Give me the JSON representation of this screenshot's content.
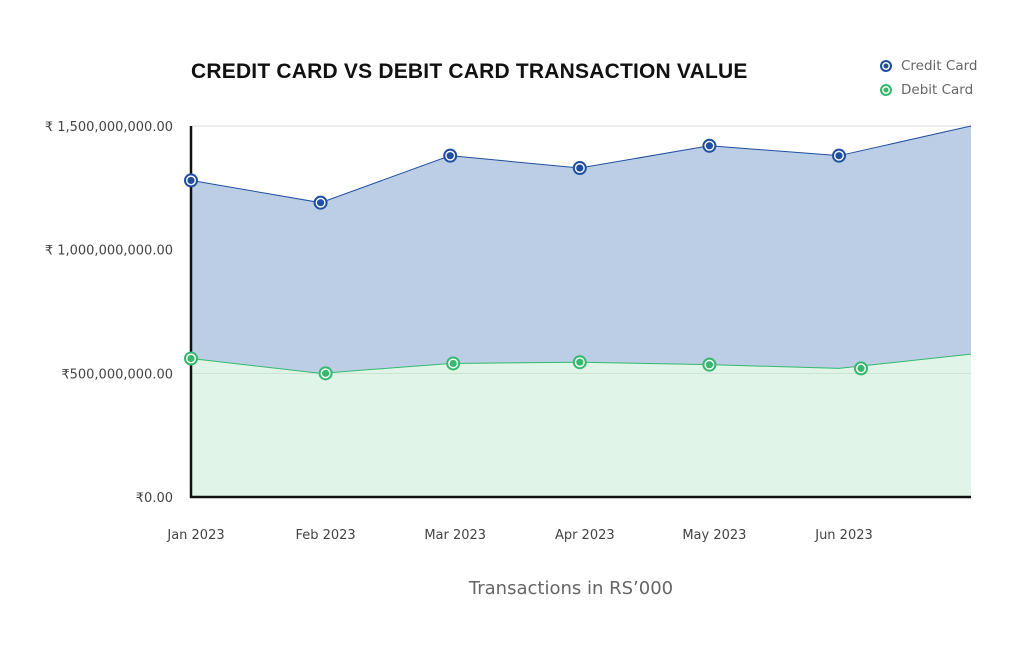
{
  "chart_data": {
    "type": "area",
    "title": "CREDIT CARD VS DEBIT CARD TRANSACTION VALUE",
    "xlabel": "Transactions in RS’000",
    "ylabel": "",
    "categories": [
      "Jan 2023",
      "Feb 2023",
      "Mar 2023",
      "Apr 2023",
      "May 2023",
      "Jun 2023"
    ],
    "ylim": [
      0,
      1500000000
    ],
    "y_ticks": [
      0,
      500000000,
      1000000000,
      1500000000
    ],
    "y_tick_labels": [
      "₹0.00",
      "₹500,000,000.00",
      "₹ 1,000,000,000.00",
      "₹ 1,500,000,000.00"
    ],
    "legend_position": "top-right",
    "grid": true,
    "series": [
      {
        "name": "Credit Card",
        "color": "#1f4fa0",
        "fill": "#bccde6",
        "values": [
          1280000000,
          1190000000,
          1380000000,
          1330000000,
          1420000000,
          1380000000
        ]
      },
      {
        "name": "Debit Card",
        "color": "#36b86e",
        "fill": "#e1f4e8",
        "values": [
          560000000,
          500000000,
          540000000,
          545000000,
          535000000,
          520000000
        ]
      }
    ]
  }
}
